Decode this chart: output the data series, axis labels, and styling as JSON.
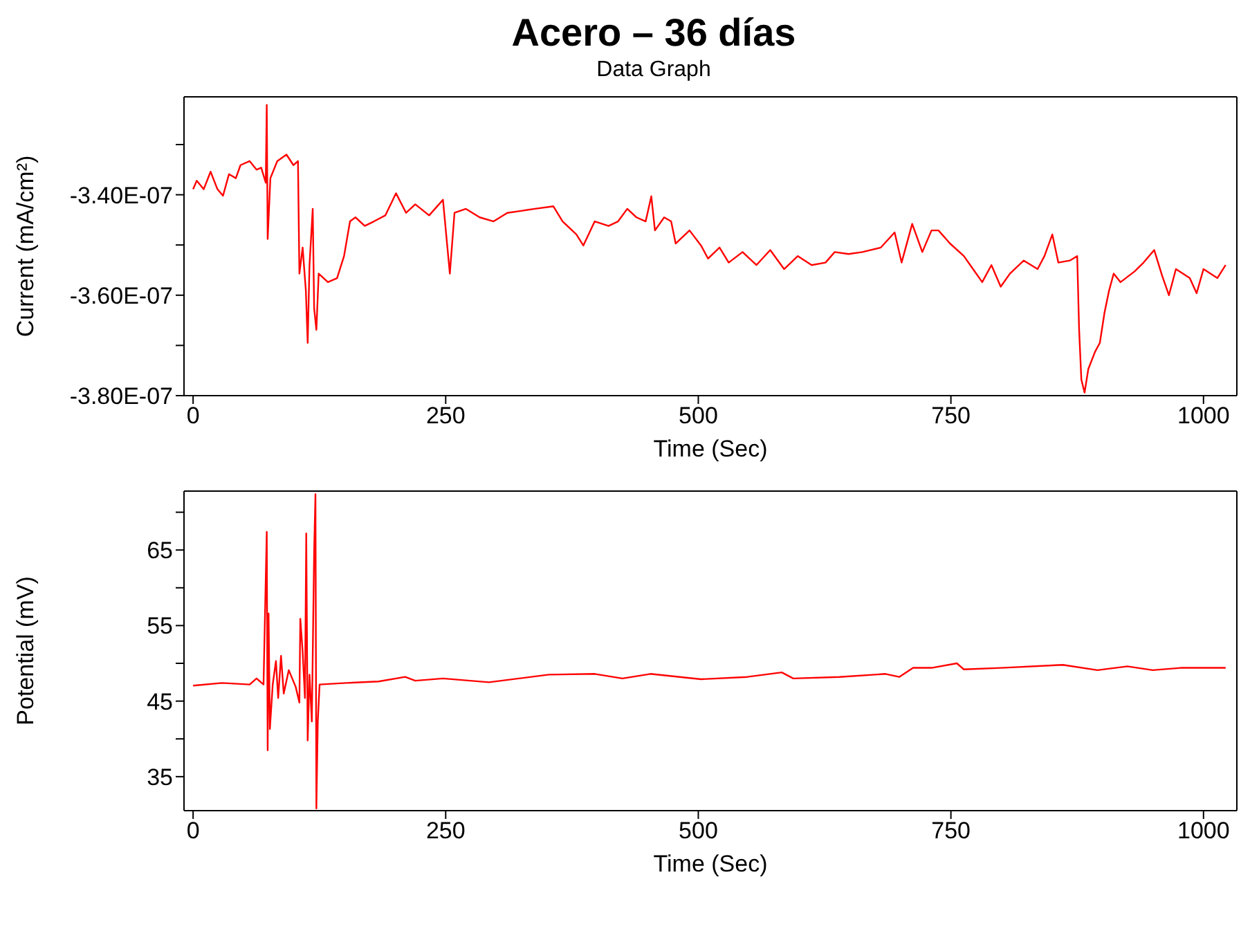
{
  "chart_data": [
    {
      "type": "line",
      "title": "Acero  – 36 días",
      "subtitle": "Data Graph",
      "xlabel": "Time (Sec)",
      "ylabel": "Current (mA/cm²)",
      "xlim": [
        -9,
        1033
      ],
      "xticks": [
        0,
        250,
        500,
        750,
        1000
      ],
      "ylim": [
        -3.8e-07,
        -3.205e-07
      ],
      "yticks": [
        {
          "value": -3.8e-07,
          "label": "-3.80E-07"
        },
        {
          "value": -3.7e-07,
          "label": null
        },
        {
          "value": -3.6e-07,
          "label": "-3.60E-07"
        },
        {
          "value": -3.5e-07,
          "label": null
        },
        {
          "value": -3.4e-07,
          "label": "-3.40E-07"
        },
        {
          "value": -3.3e-07,
          "label": null
        }
      ],
      "series": [
        {
          "color": "#ff0000",
          "x": [
            0,
            3.6,
            10.5,
            17.3,
            24.1,
            29.6,
            35.5,
            42.3,
            46.9,
            56.0,
            62.8,
            67.4,
            71.9,
            72.9,
            73.8,
            76.5,
            83.3,
            92.4,
            99.3,
            103.8,
            105.2,
            108.4,
            111.6,
            113.4,
            115.2,
            118.4,
            119.8,
            122.0,
            124.3,
            133.4,
            142.5,
            149.4,
            155.3,
            160.7,
            169.9,
            179.0,
            190.3,
            200.8,
            210.8,
            219.9,
            233.6,
            247.3,
            254.1,
            258.7,
            270.0,
            283.7,
            297.4,
            311.0,
            324.7,
            338.3,
            356.6,
            365.7,
            379.3,
            386.2,
            397.5,
            411.2,
            420.6,
            429.7,
            438.8,
            447.9,
            453.5,
            457.1,
            466.2,
            473.1,
            477.6,
            491.3,
            502.7,
            509.6,
            521.0,
            530.1,
            543.8,
            557.5,
            571.2,
            584.9,
            598.5,
            612.2,
            625.9,
            635.0,
            648.7,
            662.4,
            680.7,
            694.3,
            701.2,
            711.7,
            721.7,
            730.8,
            737.7,
            749.1,
            762.8,
            771.9,
            781.0,
            790.1,
            799.3,
            808.4,
            822.1,
            835.8,
            842.6,
            850.4,
            856.3,
            867.7,
            875.0,
            876.9,
            879.1,
            882.3,
            886.0,
            892.8,
            897.4,
            902.0,
            906.5,
            911.1,
            917.9,
            931.6,
            940.7,
            951.2,
            959.0,
            965.8,
            972.7,
            986.4,
            993.2,
            1000.0,
            1013.7,
            1021.9
          ],
          "values": [
            -3.389e-07,
            -3.372e-07,
            -3.389e-07,
            -3.354e-07,
            -3.389e-07,
            -3.402e-07,
            -3.359e-07,
            -3.367e-07,
            -3.341e-07,
            -3.333e-07,
            -3.35e-07,
            -3.346e-07,
            -3.376e-07,
            -3.221e-07,
            -3.488e-07,
            -3.367e-07,
            -3.333e-07,
            -3.32e-07,
            -3.341e-07,
            -3.333e-07,
            -3.557e-07,
            -3.505e-07,
            -3.591e-07,
            -3.695e-07,
            -3.54e-07,
            -3.428e-07,
            -3.626e-07,
            -3.669e-07,
            -3.557e-07,
            -3.574e-07,
            -3.566e-07,
            -3.522e-07,
            -3.453e-07,
            -3.445e-07,
            -3.462e-07,
            -3.453e-07,
            -3.441e-07,
            -3.397e-07,
            -3.436e-07,
            -3.419e-07,
            -3.441e-07,
            -3.41e-07,
            -3.557e-07,
            -3.436e-07,
            -3.428e-07,
            -3.445e-07,
            -3.453e-07,
            -3.436e-07,
            -3.432e-07,
            -3.428e-07,
            -3.423e-07,
            -3.453e-07,
            -3.479e-07,
            -3.501e-07,
            -3.453e-07,
            -3.462e-07,
            -3.453e-07,
            -3.428e-07,
            -3.445e-07,
            -3.453e-07,
            -3.403e-07,
            -3.471e-07,
            -3.445e-07,
            -3.453e-07,
            -3.497e-07,
            -3.471e-07,
            -3.501e-07,
            -3.527e-07,
            -3.505e-07,
            -3.535e-07,
            -3.514e-07,
            -3.54e-07,
            -3.51e-07,
            -3.548e-07,
            -3.522e-07,
            -3.54e-07,
            -3.535e-07,
            -3.514e-07,
            -3.518e-07,
            -3.514e-07,
            -3.505e-07,
            -3.475e-07,
            -3.535e-07,
            -3.458e-07,
            -3.514e-07,
            -3.471e-07,
            -3.471e-07,
            -3.497e-07,
            -3.522e-07,
            -3.548e-07,
            -3.574e-07,
            -3.54e-07,
            -3.583e-07,
            -3.557e-07,
            -3.531e-07,
            -3.548e-07,
            -3.522e-07,
            -3.479e-07,
            -3.535e-07,
            -3.531e-07,
            -3.522e-07,
            -3.669e-07,
            -3.768e-07,
            -3.794e-07,
            -3.747e-07,
            -3.712e-07,
            -3.695e-07,
            -3.635e-07,
            -3.591e-07,
            -3.557e-07,
            -3.574e-07,
            -3.553e-07,
            -3.535e-07,
            -3.51e-07,
            -3.561e-07,
            -3.6e-07,
            -3.548e-07,
            -3.566e-07,
            -3.596e-07,
            -3.548e-07,
            -3.566e-07,
            -3.54e-07
          ]
        }
      ]
    },
    {
      "type": "line",
      "xlabel": "Time (Sec)",
      "ylabel": "Potential (mV)",
      "xlim": [
        -9,
        1033
      ],
      "xticks": [
        0,
        250,
        500,
        750,
        1000
      ],
      "ylim": [
        30.5,
        72.8
      ],
      "yticks": [
        35,
        {
          "value": 40,
          "label": null
        },
        45,
        {
          "value": 50,
          "label": null
        },
        55,
        {
          "value": 60,
          "label": null
        },
        65,
        {
          "value": 70,
          "label": null
        }
      ],
      "series": [
        {
          "color": "#ff0000",
          "x": [
            0,
            28.7,
            56.0,
            62.8,
            69.7,
            72.9,
            73.8,
            74.7,
            76.0,
            78.8,
            82.0,
            84.2,
            87.0,
            89.7,
            94.7,
            101.5,
            105.2,
            106.1,
            108.4,
            110.7,
            112.0,
            113.4,
            115.2,
            117.5,
            119.8,
            121.1,
            122.0,
            123.4,
            125.2,
            151.6,
            183.5,
            209.9,
            219.9,
            247.3,
            292.8,
            352.0,
            397.5,
            424.9,
            452.6,
            502.7,
            548.4,
            582.6,
            594.0,
            639.6,
            685.2,
            698.9,
            712.6,
            730.8,
            755.9,
            762.8,
            799.3,
            860.9,
            895.1,
            924.7,
            949.8,
            977.2,
            1021.9
          ],
          "values": [
            47.05,
            47.4,
            47.2,
            48.0,
            47.2,
            67.4,
            38.5,
            56.6,
            41.3,
            47.2,
            50.3,
            45.4,
            51.0,
            46.0,
            49.1,
            46.9,
            44.8,
            55.9,
            51.6,
            45.4,
            67.2,
            39.8,
            48.5,
            42.3,
            64.8,
            72.4,
            30.8,
            42.3,
            47.2,
            47.4,
            47.6,
            48.2,
            47.7,
            48.0,
            47.5,
            48.5,
            48.6,
            48.0,
            48.6,
            47.9,
            48.2,
            48.8,
            48.0,
            48.2,
            48.6,
            48.2,
            49.4,
            49.4,
            50.0,
            49.2,
            49.4,
            49.8,
            49.1,
            49.6,
            49.1,
            49.4,
            49.4
          ]
        }
      ]
    }
  ]
}
